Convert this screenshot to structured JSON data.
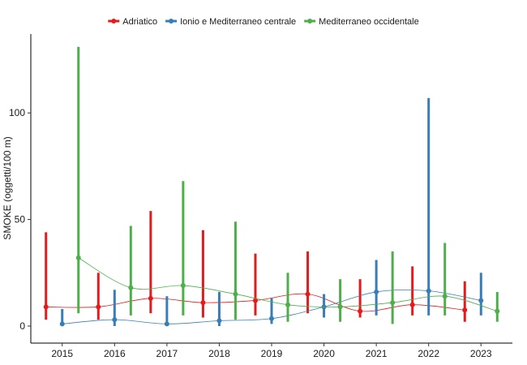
{
  "chart_data": {
    "type": "line",
    "title": "",
    "xlabel": "",
    "ylabel": "SMOKE (oggetti/100 m)",
    "x": [
      2015,
      2016,
      2017,
      2018,
      2019,
      2020,
      2021,
      2022,
      2023
    ],
    "xlim": [
      2014.4,
      2023.6
    ],
    "ylim": [
      -8,
      137
    ],
    "yticks": [
      0,
      50,
      100
    ],
    "grid": false,
    "legend_position": "top",
    "series": [
      {
        "name": "Adriatico",
        "color": "#E41A1C",
        "values": [
          9,
          9,
          13,
          11,
          12,
          15,
          7,
          10,
          7.5
        ],
        "low": [
          3,
          3,
          6,
          4,
          5,
          6,
          4,
          5,
          2
        ],
        "high": [
          44,
          25,
          54,
          45,
          34,
          35,
          22,
          28,
          21
        ]
      },
      {
        "name": "Ionio e Mediterraneo centrale",
        "color": "#377EB8",
        "values": [
          1,
          3,
          1,
          2.5,
          3.5,
          9,
          16,
          16.5,
          12
        ],
        "low": [
          0,
          0,
          0,
          0,
          1,
          4,
          5,
          5,
          5
        ],
        "high": [
          8,
          17,
          14,
          16,
          13,
          15,
          31,
          107,
          25
        ]
      },
      {
        "name": "Mediterraneo occidentale",
        "color": "#4DAF4A",
        "values": [
          32,
          18,
          19,
          15,
          10,
          9,
          11,
          14,
          7
        ],
        "low": [
          6,
          5,
          5,
          3,
          2,
          2,
          1,
          5,
          2
        ],
        "high": [
          131,
          47,
          68,
          49,
          25,
          22,
          35,
          39,
          16
        ]
      }
    ]
  }
}
